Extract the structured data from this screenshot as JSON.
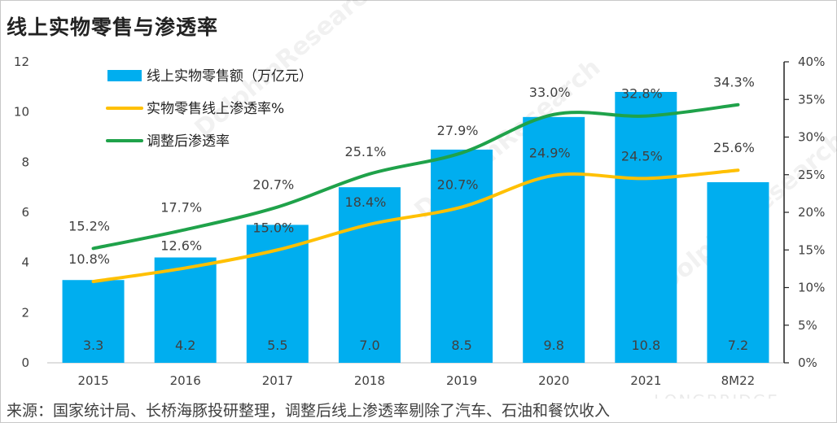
{
  "title": "线上实物零售与渗透率",
  "source": "来源：国家统计局、长桥海豚投研整理，调整后线上渗透率剔除了汽车、石油和餐饮收入",
  "watermarks": [
    "DolphinResearch",
    "LONGBRIDGE"
  ],
  "chart_data": {
    "type": "bar+line",
    "categories": [
      "2015",
      "2016",
      "2017",
      "2018",
      "2019",
      "2020",
      "2021",
      "8M22"
    ],
    "y_left": {
      "range": [
        0,
        12
      ],
      "ticks": [
        0,
        2,
        4,
        6,
        8,
        10,
        12
      ]
    },
    "y_right": {
      "range": [
        0,
        40
      ],
      "ticks": [
        "0%",
        "5%",
        "10%",
        "15%",
        "20%",
        "25%",
        "30%",
        "35%",
        "40%"
      ]
    },
    "series": [
      {
        "name": "线上实物零售额（万亿元）",
        "type": "bar",
        "axis": "left",
        "color": "#00aeef",
        "values": [
          3.3,
          4.2,
          5.5,
          7.0,
          8.5,
          9.8,
          10.8,
          7.2
        ],
        "labels": [
          "3.3",
          "4.2",
          "5.5",
          "7.0",
          "8.5",
          "9.8",
          "10.8",
          "7.2"
        ]
      },
      {
        "name": "实物零售线上渗透率%",
        "type": "line",
        "axis": "right",
        "color": "#ffc000",
        "values": [
          10.8,
          12.6,
          15.0,
          18.4,
          20.7,
          24.9,
          24.5,
          25.6
        ],
        "labels": [
          "10.8%",
          "12.6%",
          "15.0%",
          "18.4%",
          "20.7%",
          "24.9%",
          "24.5%",
          "25.6%"
        ]
      },
      {
        "name": "调整后渗透率",
        "type": "line",
        "axis": "right",
        "color": "#1fa24a",
        "values": [
          15.2,
          17.7,
          20.7,
          25.1,
          27.9,
          33.0,
          32.8,
          34.3
        ],
        "labels": [
          "15.2%",
          "17.7%",
          "20.7%",
          "25.1%",
          "27.9%",
          "33.0%",
          "32.8%",
          "34.3%"
        ]
      }
    ]
  }
}
